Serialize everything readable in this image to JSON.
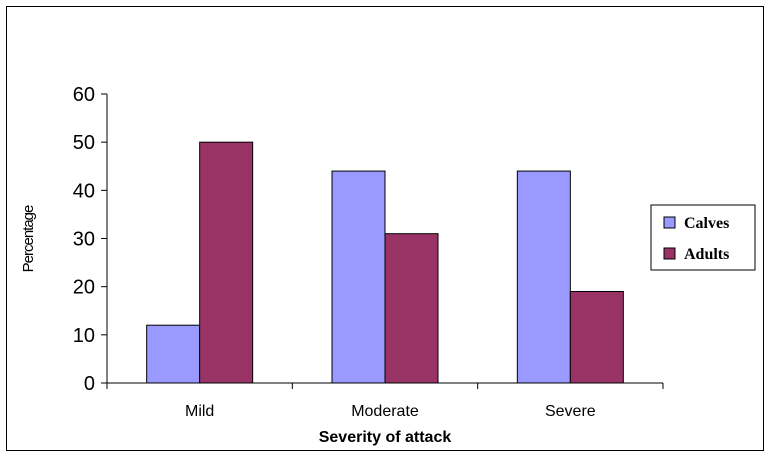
{
  "chart_data": {
    "type": "bar",
    "categories": [
      "Mild",
      "Moderate",
      "Severe"
    ],
    "series": [
      {
        "name": "Calves",
        "values": [
          12,
          44,
          44
        ],
        "color": "#9999ff"
      },
      {
        "name": "Adults",
        "values": [
          50,
          31,
          19
        ],
        "color": "#993366"
      }
    ],
    "xlabel": "Severity of attack",
    "ylabel": "Percentage",
    "ylim": [
      0,
      60
    ],
    "yticks": [
      0,
      10,
      20,
      30,
      40,
      50,
      60
    ],
    "grid": false,
    "legend_position": "right"
  }
}
